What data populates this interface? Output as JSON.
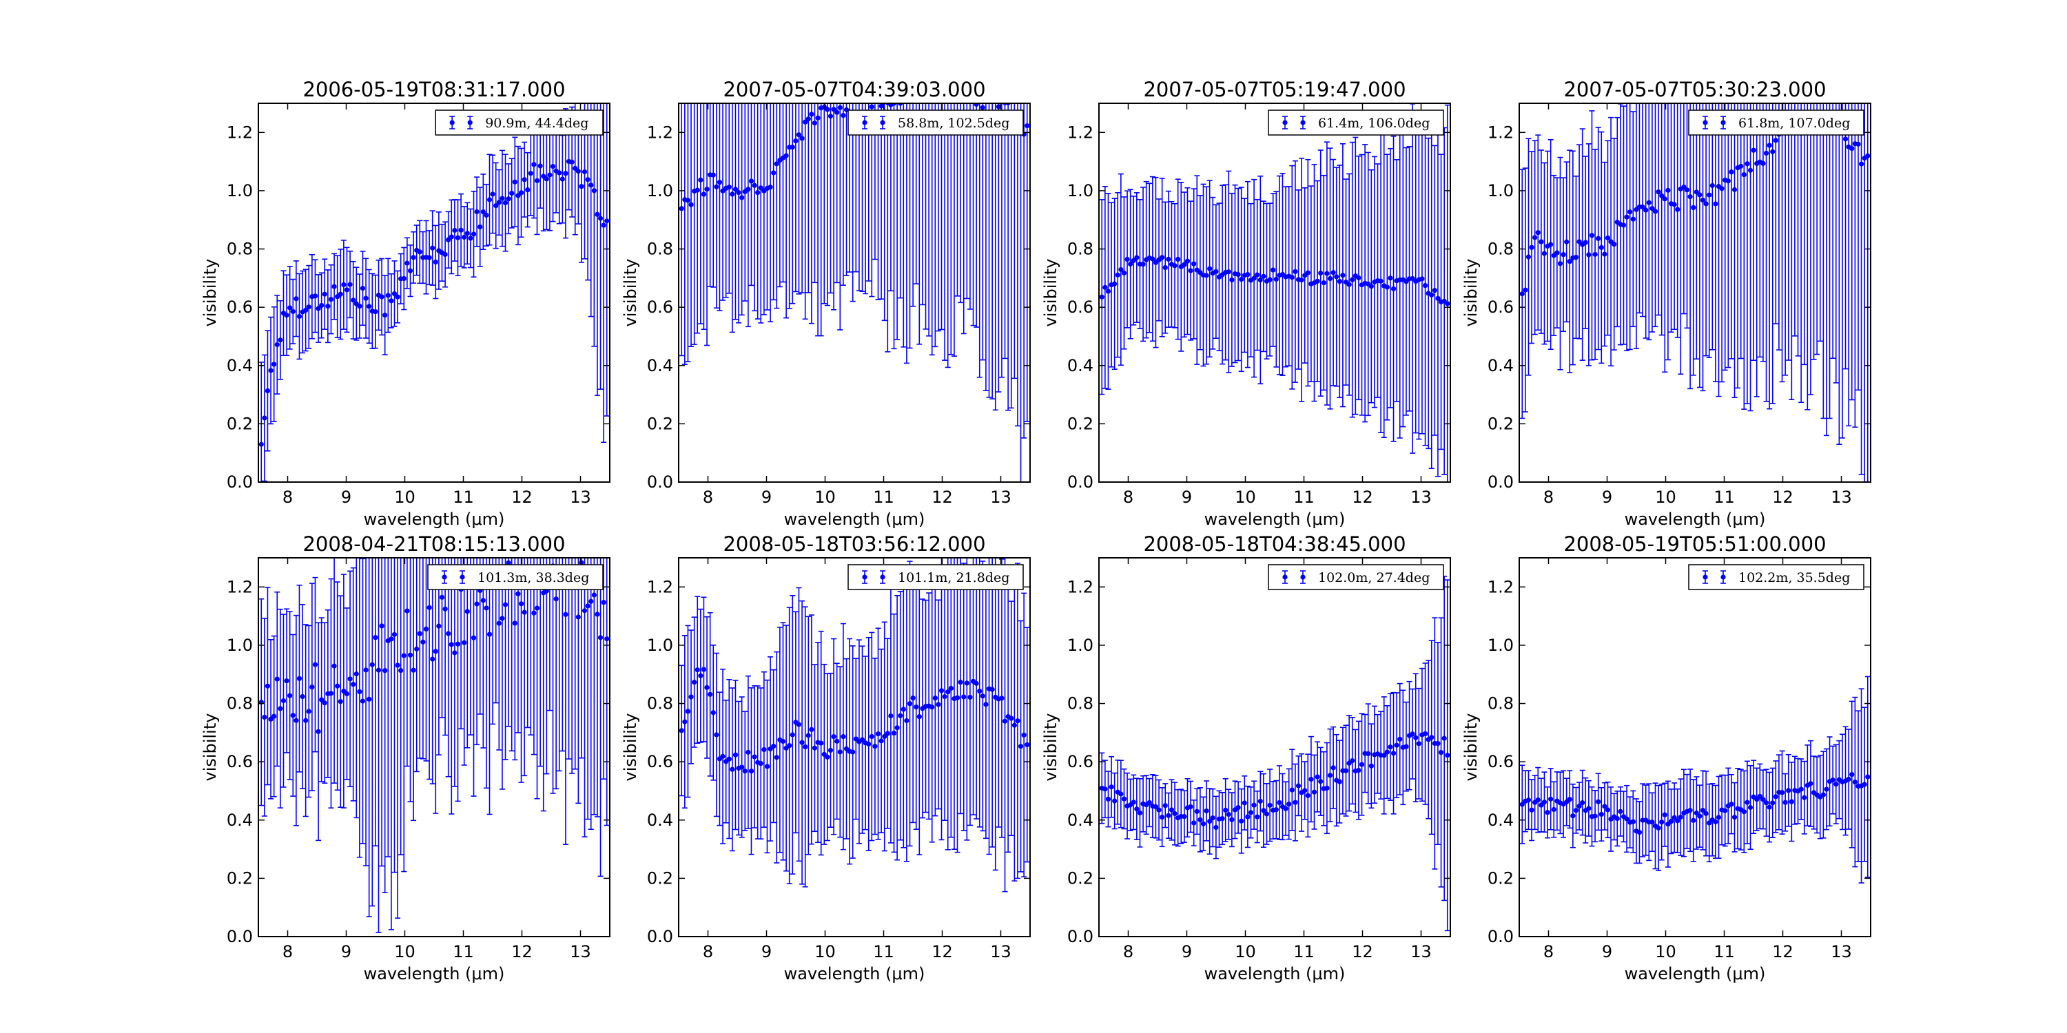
{
  "figure": {
    "series_color": "#0000ff",
    "axis_color": "#000000"
  },
  "chart_data": [
    {
      "type": "errorbar",
      "title": "2006-05-19T08:31:17.000",
      "xlabel": "wavelength (μm)",
      "ylabel": "visibility",
      "xlim": [
        7.5,
        13.5
      ],
      "ylim": [
        0.0,
        1.3
      ],
      "xticks": [
        "8",
        "9",
        "10",
        "11",
        "12",
        "13"
      ],
      "yticks": [
        "0.0",
        "0.2",
        "0.4",
        "0.6",
        "0.8",
        "1.0",
        "1.2"
      ],
      "legend": "90.9m, 44.4deg",
      "legend_position": "top-right",
      "x_range": [
        7.55,
        13.45
      ],
      "knots": [
        [
          7.55,
          0.15
        ],
        [
          7.75,
          0.42
        ],
        [
          8.0,
          0.6
        ],
        [
          8.5,
          0.62
        ],
        [
          9.0,
          0.66
        ],
        [
          9.5,
          0.6
        ],
        [
          9.8,
          0.62
        ],
        [
          10.0,
          0.74
        ],
        [
          10.5,
          0.78
        ],
        [
          11.0,
          0.85
        ],
        [
          11.5,
          0.95
        ],
        [
          12.0,
          1.03
        ],
        [
          12.5,
          1.08
        ],
        [
          13.0,
          1.05
        ],
        [
          13.45,
          0.9
        ]
      ],
      "err_knots": [
        [
          7.55,
          0.25
        ],
        [
          8.0,
          0.13
        ],
        [
          9.0,
          0.14
        ],
        [
          10.0,
          0.1
        ],
        [
          11.0,
          0.12
        ],
        [
          12.0,
          0.15
        ],
        [
          13.0,
          0.2
        ],
        [
          13.45,
          0.7
        ]
      ],
      "scatter": 0.04
    },
    {
      "type": "errorbar",
      "title": "2007-05-07T04:39:03.000",
      "xlabel": "wavelength (μm)",
      "ylabel": "visibility",
      "xlim": [
        7.5,
        13.5
      ],
      "ylim": [
        0.0,
        1.3
      ],
      "xticks": [
        "8",
        "9",
        "10",
        "11",
        "12",
        "13"
      ],
      "yticks": [
        "0.0",
        "0.2",
        "0.4",
        "0.6",
        "0.8",
        "1.0",
        "1.2"
      ],
      "legend": "58.8m, 102.5deg",
      "legend_position": "top-right",
      "x_range": [
        7.55,
        13.45
      ],
      "knots": [
        [
          7.55,
          0.95
        ],
        [
          8.0,
          1.03
        ],
        [
          8.5,
          1.0
        ],
        [
          9.0,
          1.02
        ],
        [
          9.4,
          1.15
        ],
        [
          9.8,
          1.25
        ],
        [
          10.5,
          1.3
        ],
        [
          11.0,
          1.32
        ],
        [
          12.0,
          1.35
        ],
        [
          13.0,
          1.3
        ],
        [
          13.45,
          1.2
        ]
      ],
      "err_knots": [
        [
          7.55,
          0.6
        ],
        [
          8.0,
          0.45
        ],
        [
          9.0,
          0.42
        ],
        [
          10.0,
          0.7
        ],
        [
          11.0,
          0.72
        ],
        [
          12.0,
          0.8
        ],
        [
          13.0,
          1.0
        ],
        [
          13.45,
          1.2
        ]
      ],
      "scatter": 0.03
    },
    {
      "type": "errorbar",
      "title": "2007-05-07T05:19:47.000",
      "xlabel": "wavelength (μm)",
      "ylabel": "visibility",
      "xlim": [
        7.5,
        13.5
      ],
      "ylim": [
        0.0,
        1.3
      ],
      "xticks": [
        "8",
        "9",
        "10",
        "11",
        "12",
        "13"
      ],
      "yticks": [
        "0.0",
        "0.2",
        "0.4",
        "0.6",
        "0.8",
        "1.0",
        "1.2"
      ],
      "legend": "61.4m, 106.0deg",
      "legend_position": "top-right",
      "x_range": [
        7.55,
        13.45
      ],
      "knots": [
        [
          7.55,
          0.64
        ],
        [
          8.0,
          0.75
        ],
        [
          8.5,
          0.76
        ],
        [
          9.0,
          0.74
        ],
        [
          9.5,
          0.72
        ],
        [
          10.0,
          0.7
        ],
        [
          10.5,
          0.71
        ],
        [
          11.0,
          0.7
        ],
        [
          11.5,
          0.7
        ],
        [
          12.0,
          0.69
        ],
        [
          12.5,
          0.68
        ],
        [
          13.0,
          0.68
        ],
        [
          13.45,
          0.62
        ]
      ],
      "err_knots": [
        [
          7.55,
          0.35
        ],
        [
          8.0,
          0.25
        ],
        [
          9.0,
          0.27
        ],
        [
          10.0,
          0.3
        ],
        [
          11.0,
          0.35
        ],
        [
          12.0,
          0.42
        ],
        [
          13.0,
          0.52
        ],
        [
          13.45,
          0.6
        ]
      ],
      "scatter": 0.02
    },
    {
      "type": "errorbar",
      "title": "2007-05-07T05:30:23.000",
      "xlabel": "wavelength (μm)",
      "ylabel": "visibility",
      "xlim": [
        7.5,
        13.5
      ],
      "ylim": [
        0.0,
        1.3
      ],
      "xticks": [
        "8",
        "9",
        "10",
        "11",
        "12",
        "13"
      ],
      "yticks": [
        "0.0",
        "0.2",
        "0.4",
        "0.6",
        "0.8",
        "1.0",
        "1.2"
      ],
      "legend": "61.8m, 107.0deg",
      "legend_position": "top-right",
      "x_range": [
        7.55,
        13.45
      ],
      "knots": [
        [
          7.55,
          0.65
        ],
        [
          7.8,
          0.85
        ],
        [
          8.0,
          0.78
        ],
        [
          8.5,
          0.8
        ],
        [
          9.0,
          0.82
        ],
        [
          9.5,
          0.92
        ],
        [
          10.0,
          0.97
        ],
        [
          10.5,
          0.98
        ],
        [
          11.0,
          1.0
        ],
        [
          11.5,
          1.1
        ],
        [
          12.0,
          1.2
        ],
        [
          12.5,
          1.25
        ],
        [
          13.0,
          1.2
        ],
        [
          13.45,
          1.1
        ]
      ],
      "err_knots": [
        [
          7.55,
          0.4
        ],
        [
          8.0,
          0.3
        ],
        [
          9.0,
          0.38
        ],
        [
          10.0,
          0.5
        ],
        [
          11.0,
          0.62
        ],
        [
          12.0,
          0.8
        ],
        [
          13.0,
          0.95
        ],
        [
          13.45,
          1.1
        ]
      ],
      "scatter": 0.04
    },
    {
      "type": "errorbar",
      "title": "2008-04-21T08:15:13.000",
      "xlabel": "wavelength (μm)",
      "ylabel": "visibility",
      "xlim": [
        7.5,
        13.5
      ],
      "ylim": [
        0.0,
        1.3
      ],
      "xticks": [
        "8",
        "9",
        "10",
        "11",
        "12",
        "13"
      ],
      "yticks": [
        "0.0",
        "0.2",
        "0.4",
        "0.6",
        "0.8",
        "1.0",
        "1.2"
      ],
      "legend": "101.3m, 38.3deg",
      "legend_position": "top-right",
      "x_range": [
        7.55,
        13.45
      ],
      "knots": [
        [
          7.55,
          0.8
        ],
        [
          8.0,
          0.85
        ],
        [
          8.5,
          0.82
        ],
        [
          9.0,
          0.85
        ],
        [
          9.5,
          0.95
        ],
        [
          10.0,
          1.0
        ],
        [
          10.5,
          1.05
        ],
        [
          11.0,
          1.1
        ],
        [
          11.5,
          1.15
        ],
        [
          12.0,
          1.2
        ],
        [
          12.5,
          1.25
        ],
        [
          13.0,
          1.2
        ],
        [
          13.45,
          1.1
        ]
      ],
      "err_knots": [
        [
          7.55,
          0.3
        ],
        [
          8.0,
          0.3
        ],
        [
          9.0,
          0.35
        ],
        [
          9.7,
          0.9
        ],
        [
          10.2,
          0.5
        ],
        [
          11.0,
          0.5
        ],
        [
          12.0,
          0.55
        ],
        [
          13.0,
          0.8
        ],
        [
          13.45,
          0.7
        ]
      ],
      "scatter": 0.12
    },
    {
      "type": "errorbar",
      "title": "2008-05-18T03:56:12.000",
      "xlabel": "wavelength (μm)",
      "ylabel": "visibility",
      "xlim": [
        7.5,
        13.5
      ],
      "ylim": [
        0.0,
        1.3
      ],
      "xticks": [
        "8",
        "9",
        "10",
        "11",
        "12",
        "13"
      ],
      "yticks": [
        "0.0",
        "0.2",
        "0.4",
        "0.6",
        "0.8",
        "1.0",
        "1.2"
      ],
      "legend": "101.1m, 21.8deg",
      "legend_position": "top-right",
      "x_range": [
        7.55,
        13.45
      ],
      "knots": [
        [
          7.55,
          0.7
        ],
        [
          7.9,
          0.95
        ],
        [
          8.2,
          0.62
        ],
        [
          8.5,
          0.6
        ],
        [
          9.0,
          0.61
        ],
        [
          9.5,
          0.7
        ],
        [
          10.0,
          0.65
        ],
        [
          10.5,
          0.66
        ],
        [
          11.0,
          0.7
        ],
        [
          11.5,
          0.78
        ],
        [
          12.0,
          0.82
        ],
        [
          12.5,
          0.85
        ],
        [
          13.0,
          0.8
        ],
        [
          13.45,
          0.65
        ]
      ],
      "err_knots": [
        [
          7.55,
          0.25
        ],
        [
          8.0,
          0.25
        ],
        [
          9.0,
          0.25
        ],
        [
          9.5,
          0.45
        ],
        [
          10.0,
          0.3
        ],
        [
          11.0,
          0.38
        ],
        [
          12.0,
          0.45
        ],
        [
          13.0,
          0.5
        ],
        [
          13.45,
          0.5
        ]
      ],
      "scatter": 0.04
    },
    {
      "type": "errorbar",
      "title": "2008-05-18T04:38:45.000",
      "xlabel": "wavelength (μm)",
      "ylabel": "visibility",
      "xlim": [
        7.5,
        13.5
      ],
      "ylim": [
        0.0,
        1.3
      ],
      "xticks": [
        "8",
        "9",
        "10",
        "11",
        "12",
        "13"
      ],
      "yticks": [
        "0.0",
        "0.2",
        "0.4",
        "0.6",
        "0.8",
        "1.0",
        "1.2"
      ],
      "legend": "102.0m, 27.4deg",
      "legend_position": "top-right",
      "x_range": [
        7.55,
        13.45
      ],
      "knots": [
        [
          7.55,
          0.5
        ],
        [
          8.0,
          0.46
        ],
        [
          8.5,
          0.44
        ],
        [
          9.0,
          0.42
        ],
        [
          9.5,
          0.4
        ],
        [
          10.0,
          0.43
        ],
        [
          10.5,
          0.45
        ],
        [
          11.0,
          0.5
        ],
        [
          11.5,
          0.55
        ],
        [
          12.0,
          0.6
        ],
        [
          12.5,
          0.65
        ],
        [
          13.0,
          0.68
        ],
        [
          13.45,
          0.65
        ]
      ],
      "err_knots": [
        [
          7.55,
          0.12
        ],
        [
          8.0,
          0.1
        ],
        [
          9.0,
          0.09
        ],
        [
          10.0,
          0.1
        ],
        [
          11.0,
          0.12
        ],
        [
          12.0,
          0.15
        ],
        [
          13.0,
          0.2
        ],
        [
          13.45,
          0.55
        ]
      ],
      "scatter": 0.03
    },
    {
      "type": "errorbar",
      "title": "2008-05-19T05:51:00.000",
      "xlabel": "wavelength (μm)",
      "ylabel": "visibility",
      "xlim": [
        7.5,
        13.5
      ],
      "ylim": [
        0.0,
        1.3
      ],
      "xticks": [
        "8",
        "9",
        "10",
        "11",
        "12",
        "13"
      ],
      "yticks": [
        "0.0",
        "0.2",
        "0.4",
        "0.6",
        "0.8",
        "1.0",
        "1.2"
      ],
      "legend": "102.2m, 35.5deg",
      "legend_position": "top-right",
      "x_range": [
        7.55,
        13.45
      ],
      "knots": [
        [
          7.55,
          0.44
        ],
        [
          8.0,
          0.45
        ],
        [
          8.5,
          0.44
        ],
        [
          9.0,
          0.43
        ],
        [
          9.5,
          0.38
        ],
        [
          10.0,
          0.4
        ],
        [
          10.5,
          0.41
        ],
        [
          11.0,
          0.42
        ],
        [
          11.5,
          0.45
        ],
        [
          12.0,
          0.47
        ],
        [
          12.5,
          0.5
        ],
        [
          13.0,
          0.52
        ],
        [
          13.45,
          0.55
        ]
      ],
      "err_knots": [
        [
          7.55,
          0.12
        ],
        [
          8.0,
          0.1
        ],
        [
          9.0,
          0.09
        ],
        [
          10.0,
          0.13
        ],
        [
          11.0,
          0.12
        ],
        [
          12.0,
          0.12
        ],
        [
          13.0,
          0.13
        ],
        [
          13.45,
          0.35
        ]
      ],
      "scatter": 0.03
    }
  ]
}
